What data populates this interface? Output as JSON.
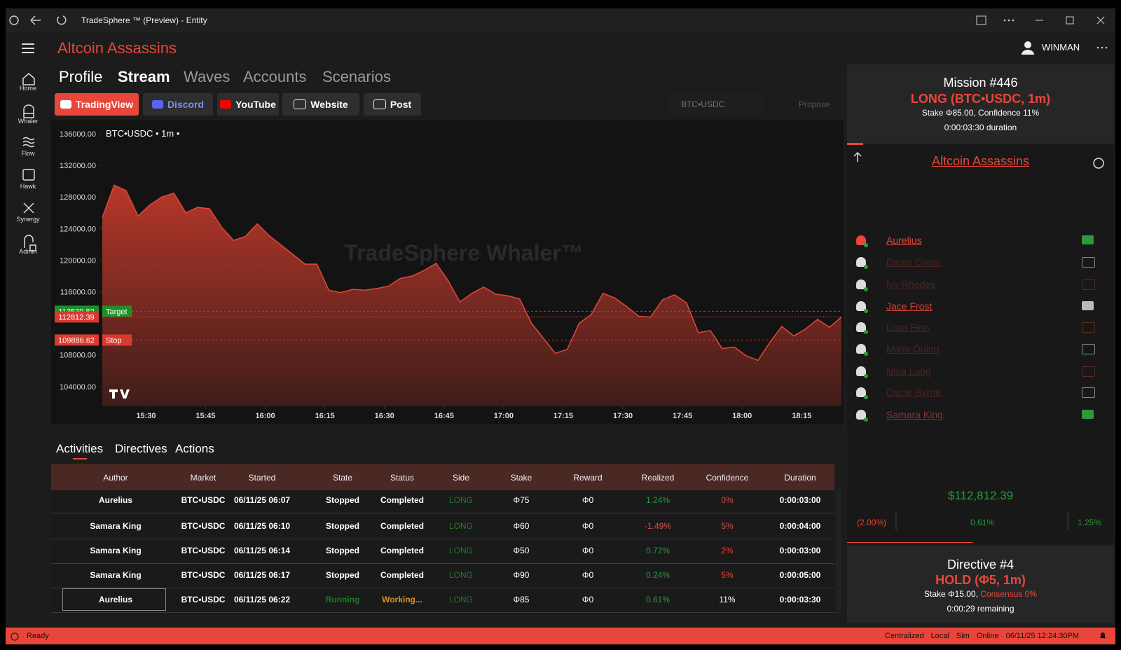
{
  "window": {
    "title": "TradeSphere ™ (Preview) - Entity"
  },
  "header": {
    "app": "Altcoin Assassins",
    "user": "WINMAN"
  },
  "nav": [
    "Home",
    "Whaler",
    "Flow",
    "Hawk",
    "Synergy",
    "Admin"
  ],
  "tabs": [
    "Profile",
    "Stream",
    "Waves",
    "Accounts",
    "Scenarios"
  ],
  "links": [
    "TradingView",
    "Discord",
    "YouTube",
    "Website",
    "Post"
  ],
  "toolbar": {
    "symbol": "BTC•USDC",
    "action": "Propose"
  },
  "chart": {
    "type": "area",
    "title": "BTC•USDC • 1m •",
    "watermark": "TradeSphere Whaler™",
    "color": "#c0392b",
    "x": [
      919,
      922,
      925,
      928,
      931,
      934,
      937,
      940,
      943,
      946,
      949,
      952,
      955,
      958,
      961,
      964,
      967,
      970,
      973,
      976,
      979,
      982,
      985,
      988,
      991,
      994,
      997,
      1000,
      1003,
      1006,
      1009,
      1012,
      1015,
      1018,
      1021,
      1024,
      1027,
      1030,
      1033,
      1036,
      1039,
      1042,
      1045,
      1048,
      1051,
      1054,
      1057,
      1060,
      1063,
      1066,
      1069,
      1072,
      1075,
      1078,
      1081,
      1084,
      1087,
      1090,
      1093,
      1096,
      1099,
      1102,
      1105
    ],
    "values": [
      125400,
      129500,
      128800,
      125600,
      127000,
      128000,
      128500,
      126000,
      126700,
      126500,
      124200,
      122500,
      123000,
      124600,
      123100,
      121900,
      120700,
      119500,
      119500,
      116200,
      115900,
      116300,
      116200,
      116400,
      116700,
      117700,
      118000,
      118700,
      119600,
      117400,
      114700,
      115800,
      116600,
      115700,
      115500,
      115100,
      112000,
      110100,
      108200,
      108700,
      112000,
      113100,
      115800,
      115200,
      114100,
      112900,
      112800,
      115000,
      115600,
      114600,
      110800,
      111100,
      108800,
      109000,
      107900,
      107300,
      109600,
      111600,
      110400,
      111300,
      112500,
      111500,
      112800
    ],
    "xlim": [
      919,
      1105
    ],
    "ylim": [
      101500,
      137600
    ],
    "xticks": [
      {
        "value": 930,
        "label": "15:30"
      },
      {
        "value": 945,
        "label": "15:45"
      },
      {
        "value": 960,
        "label": "16:00"
      },
      {
        "value": 975,
        "label": "16:15"
      },
      {
        "value": 990,
        "label": "16:30"
      },
      {
        "value": 1005,
        "label": "16:45"
      },
      {
        "value": 1020,
        "label": "17:00"
      },
      {
        "value": 1035,
        "label": "17:15"
      },
      {
        "value": 1050,
        "label": "17:30"
      },
      {
        "value": 1065,
        "label": "17:45"
      },
      {
        "value": 1080,
        "label": "18:00"
      },
      {
        "value": 1095,
        "label": "18:15"
      }
    ],
    "yticks": [
      {
        "value": 136000,
        "label": "136000.00"
      },
      {
        "value": 132000,
        "label": "132000.00"
      },
      {
        "value": 128000,
        "label": "128000.00"
      },
      {
        "value": 124000,
        "label": "124000.00"
      },
      {
        "value": 120000,
        "label": "120000.00"
      },
      {
        "value": 116000,
        "label": "116000.00"
      },
      {
        "value": 108000,
        "label": "108000.00"
      },
      {
        "value": 104000,
        "label": "104000.00"
      }
    ],
    "levels": [
      {
        "name": "Target",
        "value": 113530.82,
        "color": "#1f8f2a"
      },
      {
        "value": 112812.39,
        "color": "#d93a2f"
      },
      {
        "name": "Stop",
        "value": 109886.62,
        "color": "#d93a2f"
      }
    ]
  },
  "bottom_tabs": [
    "Activities",
    "Directives",
    "Actions"
  ],
  "table": {
    "columns": [
      "Author",
      "Market",
      "Started",
      "State",
      "Status",
      "Side",
      "Stake",
      "Reward",
      "Realized",
      "Confidence",
      "Duration"
    ],
    "rows": [
      [
        "Aurelius",
        "BTC•USDC",
        "06/11/25 06:07",
        "Stopped",
        "Completed",
        "LONG",
        "Φ75",
        "Φ0",
        "1.24%",
        "0%",
        "0:00:03:00"
      ],
      [
        "Samara King",
        "BTC•USDC",
        "06/11/25 06:10",
        "Stopped",
        "Completed",
        "LONG",
        "Φ60",
        "Φ0",
        "-1.49%",
        "5%",
        "0:00:04:00"
      ],
      [
        "Samara King",
        "BTC•USDC",
        "06/11/25 06:14",
        "Stopped",
        "Completed",
        "LONG",
        "Φ50",
        "Φ0",
        "0.72%",
        "2%",
        "0:00:03:00"
      ],
      [
        "Samara King",
        "BTC•USDC",
        "06/11/25 06:17",
        "Stopped",
        "Completed",
        "LONG",
        "Φ90",
        "Φ0",
        "0.24%",
        "5%",
        "0:00:05:00"
      ],
      [
        "Aurelius",
        "BTC•USDC",
        "06/11/25 06:22",
        "Running",
        "Working...",
        "LONG",
        "Φ85",
        "Φ0",
        "0.61%",
        "11%",
        "0:00:03:30"
      ]
    ]
  },
  "mission": {
    "title": "Mission #446",
    "position": "LONG (BTC•USDC, 1m)",
    "details": "Stake Φ85.00, Confidence 11%",
    "duration": "0:00:03:30 duration"
  },
  "team": {
    "name": "Altcoin Assassins",
    "members": [
      "Aurelius",
      "Dante Cross",
      "Ivy Rhodes",
      "Jace Frost",
      "Luca Finn",
      "Maya Quinn",
      "Nina Lang",
      "Oscar Byrne",
      "Samara King"
    ]
  },
  "gauge": {
    "price": "$112,812.39",
    "low": "(2.00%)",
    "mid": "0.61%",
    "high": "1.25%"
  },
  "directive": {
    "title": "Directive #4",
    "position": "HOLD (Φ5, 1m)",
    "stake": "Stake Φ15.00,",
    "consensus": "Consensus 0%",
    "remaining": "0:00:29 remaining"
  },
  "status": {
    "left": "Ready",
    "right": [
      "Centralized",
      "Local",
      "Sim",
      "Online",
      "06/11/25 12:24:30PM"
    ]
  }
}
